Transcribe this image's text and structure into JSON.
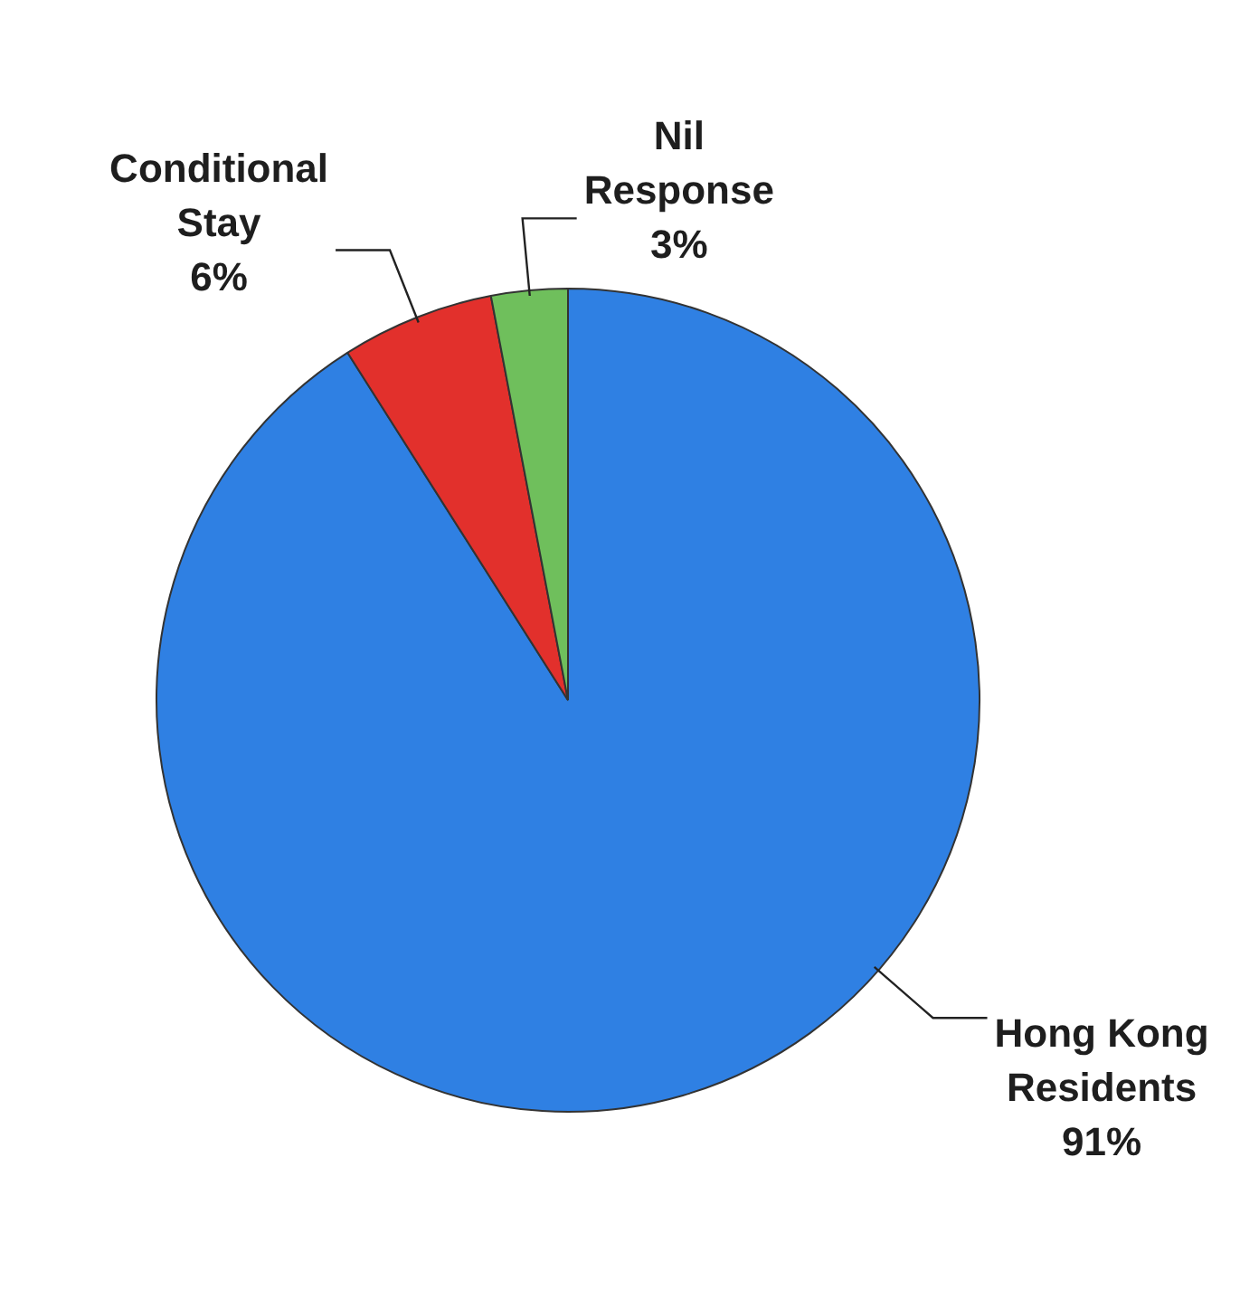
{
  "chart_data": {
    "type": "pie",
    "categories": [
      "Hong Kong Residents",
      "Conditional Stay",
      "Nil Response"
    ],
    "values": [
      91,
      6,
      3
    ],
    "value_labels": [
      "91%",
      "6%",
      "3%"
    ],
    "colors": [
      "#2f80e3",
      "#e2302c",
      "#6fbf5c"
    ],
    "legend": false
  }
}
